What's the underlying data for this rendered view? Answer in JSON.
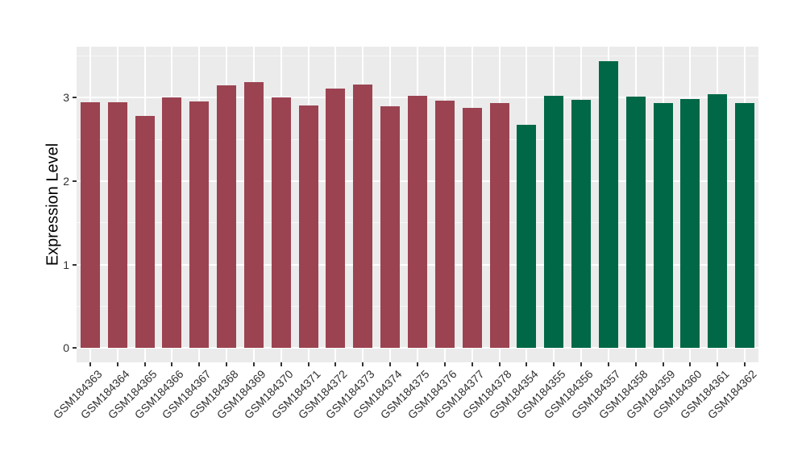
{
  "chart_data": {
    "type": "bar",
    "title": "",
    "xlabel": "",
    "ylabel": "Expression Level",
    "ylim": [
      0,
      3.6
    ],
    "yticks": [
      0,
      1,
      2,
      3
    ],
    "grid": true,
    "legend_position": "none",
    "panel_background": "#EBEBEB",
    "gridline_color": "#FFFFFF",
    "tick_text_color": "#303030",
    "group_colors": {
      "group1": "#9B4351",
      "group2": "#006847"
    },
    "bars": [
      {
        "label": "GSM184363",
        "value": 2.95,
        "group": "group1"
      },
      {
        "label": "GSM184364",
        "value": 2.95,
        "group": "group1"
      },
      {
        "label": "GSM184365",
        "value": 2.78,
        "group": "group1"
      },
      {
        "label": "GSM184366",
        "value": 3.0,
        "group": "group1"
      },
      {
        "label": "GSM184367",
        "value": 2.96,
        "group": "group1"
      },
      {
        "label": "GSM184368",
        "value": 3.15,
        "group": "group1"
      },
      {
        "label": "GSM184369",
        "value": 3.19,
        "group": "group1"
      },
      {
        "label": "GSM184370",
        "value": 3.0,
        "group": "group1"
      },
      {
        "label": "GSM184371",
        "value": 2.91,
        "group": "group1"
      },
      {
        "label": "GSM184372",
        "value": 3.11,
        "group": "group1"
      },
      {
        "label": "GSM184373",
        "value": 3.16,
        "group": "group1"
      },
      {
        "label": "GSM184374",
        "value": 2.9,
        "group": "group1"
      },
      {
        "label": "GSM184375",
        "value": 3.02,
        "group": "group1"
      },
      {
        "label": "GSM184376",
        "value": 2.97,
        "group": "group1"
      },
      {
        "label": "GSM184377",
        "value": 2.88,
        "group": "group1"
      },
      {
        "label": "GSM184378",
        "value": 2.94,
        "group": "group1"
      },
      {
        "label": "GSM184354",
        "value": 2.68,
        "group": "group2"
      },
      {
        "label": "GSM184355",
        "value": 3.02,
        "group": "group2"
      },
      {
        "label": "GSM184356",
        "value": 2.98,
        "group": "group2"
      },
      {
        "label": "GSM184357",
        "value": 3.44,
        "group": "group2"
      },
      {
        "label": "GSM184358",
        "value": 3.01,
        "group": "group2"
      },
      {
        "label": "GSM184359",
        "value": 2.94,
        "group": "group2"
      },
      {
        "label": "GSM184360",
        "value": 2.99,
        "group": "group2"
      },
      {
        "label": "GSM184361",
        "value": 3.04,
        "group": "group2"
      },
      {
        "label": "GSM184362",
        "value": 2.94,
        "group": "group2"
      }
    ]
  }
}
